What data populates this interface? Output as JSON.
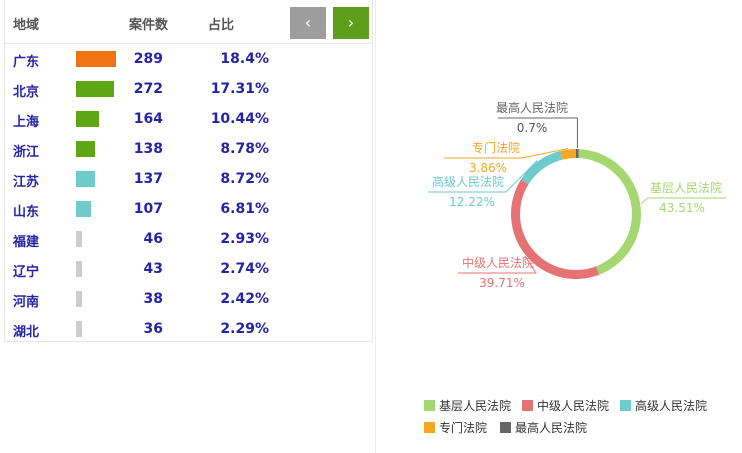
{
  "table": {
    "headers": {
      "region": "地域",
      "count": "案件数",
      "share": "占比"
    },
    "nav": {
      "prev_icon": "chevron-left-icon",
      "prev_glyph": "‹",
      "next_icon": "chevron-right-icon",
      "next_glyph": "›"
    },
    "rows": [
      {
        "region": "广东",
        "count": "289",
        "share": "18.4%",
        "bar_color": "#f07412"
      },
      {
        "region": "北京",
        "count": "272",
        "share": "17.31%",
        "bar_color": "#5ea614"
      },
      {
        "region": "上海",
        "count": "164",
        "share": "10.44%",
        "bar_color": "#5ea614"
      },
      {
        "region": "浙江",
        "count": "138",
        "share": "8.78%",
        "bar_color": "#5ea614"
      },
      {
        "region": "江苏",
        "count": "137",
        "share": "8.72%",
        "bar_color": "#6ecacb"
      },
      {
        "region": "山东",
        "count": "107",
        "share": "6.81%",
        "bar_color": "#6ecacb"
      },
      {
        "region": "福建",
        "count": "46",
        "share": "2.93%",
        "bar_color": "#cccccc"
      },
      {
        "region": "辽宁",
        "count": "43",
        "share": "2.74%",
        "bar_color": "#cccccc"
      },
      {
        "region": "河南",
        "count": "38",
        "share": "2.42%",
        "bar_color": "#cccccc"
      },
      {
        "region": "湖北",
        "count": "36",
        "share": "2.29%",
        "bar_color": "#cccccc"
      }
    ]
  },
  "chart_data": {
    "type": "pie",
    "title": "",
    "donut": true,
    "legend_position": "bottom",
    "series": [
      {
        "name": "基层人民法院",
        "value": 43.51,
        "label": "43.51%",
        "color": "#a5d670"
      },
      {
        "name": "中级人民法院",
        "value": 39.71,
        "label": "39.71%",
        "color": "#e57373"
      },
      {
        "name": "高级人民法院",
        "value": 12.22,
        "label": "12.22%",
        "color": "#6ecacb"
      },
      {
        "name": "专门法院",
        "value": 3.86,
        "label": "3.86%",
        "color": "#f5a623"
      },
      {
        "name": "最高人民法院",
        "value": 0.7,
        "label": "0.7%",
        "color": "#666666"
      }
    ]
  }
}
